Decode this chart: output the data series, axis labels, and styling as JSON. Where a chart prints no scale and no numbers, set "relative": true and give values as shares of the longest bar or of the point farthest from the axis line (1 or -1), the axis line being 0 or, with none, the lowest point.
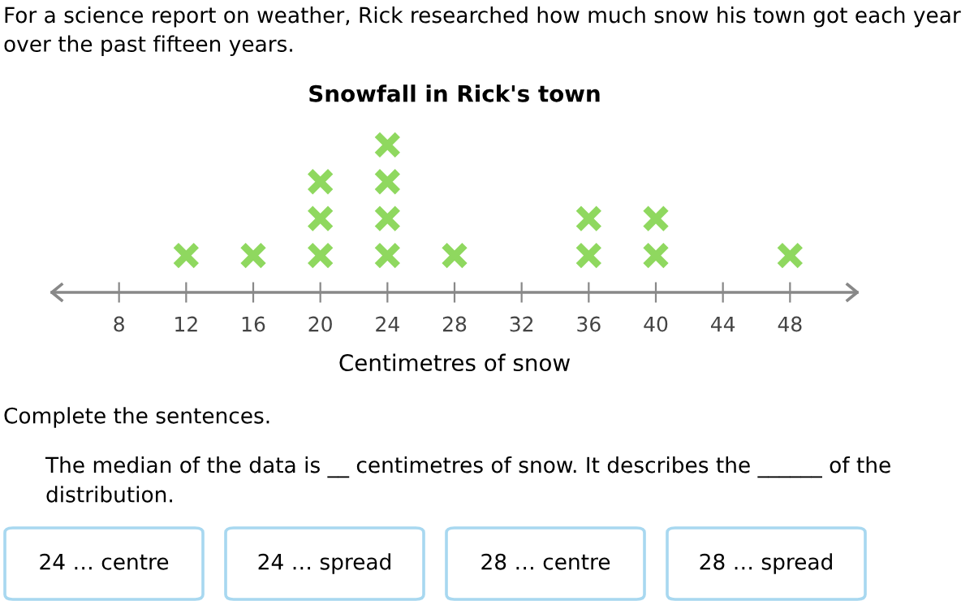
{
  "chart_data": {
    "type": "scatter",
    "title": "Snowfall in Rick's town",
    "xlabel": "Centimetres of snow",
    "series": [
      {
        "color": "#8fd85f",
        "x": [
          12,
          16,
          20,
          20,
          20,
          24,
          24,
          24,
          24,
          28,
          36,
          36,
          40,
          40,
          48
        ],
        "values": [
          0.25,
          0.25,
          0.25,
          0.5,
          0.75,
          0.25,
          0.5,
          0.75,
          1,
          0.25,
          0.25,
          0.5,
          0.25,
          0.5,
          0.25
        ]
      }
    ],
    "relative": true,
    "marker": "cross",
    "xlim": [
      4,
      52
    ],
    "xticks": [
      8,
      12,
      16,
      20,
      24,
      28,
      32,
      36,
      40,
      44,
      48
    ],
    "tick_labels": "x",
    "grid": false,
    "legend": false,
    "annotations": [
      "For a science report on weather, Rick researched how much snow his town got each year over the past fifteen years.",
      "Complete the sentences.",
      "The median of the data is __ centimetres of snow. It describes the ______ of the distribution.",
      "24 … centre",
      "24 … spread",
      "28 … centre",
      "28 … spread"
    ]
  }
}
